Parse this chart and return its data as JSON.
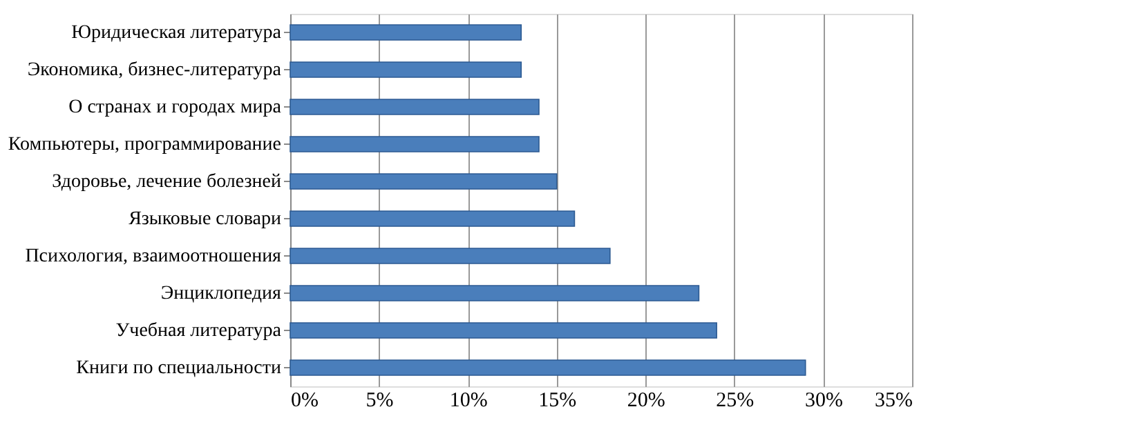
{
  "chart_data": {
    "type": "bar",
    "orientation": "horizontal",
    "categories": [
      "Юридическая литература",
      "Экономика, бизнес-литература",
      "О странах и городах мира",
      "Компьютеры, программирование",
      "Здоровье, лечение болезней",
      "Языковые словари",
      "Психология, взаимоотношения",
      "Энциклопедия",
      "Учебная литература",
      "Книги по специальности"
    ],
    "values": [
      13,
      13,
      14,
      14,
      15,
      16,
      18,
      23,
      24,
      29
    ],
    "color": "#4a7ebb",
    "xlim": [
      0,
      35
    ],
    "xticks": [
      {
        "value": 0,
        "label": "0%"
      },
      {
        "value": 5,
        "label": "5%"
      },
      {
        "value": 10,
        "label": "10%"
      },
      {
        "value": 15,
        "label": "15%"
      },
      {
        "value": 20,
        "label": "20%"
      },
      {
        "value": 25,
        "label": "25%"
      },
      {
        "value": 30,
        "label": "30%"
      },
      {
        "value": 35,
        "label": "35%"
      }
    ],
    "grid": "x"
  }
}
